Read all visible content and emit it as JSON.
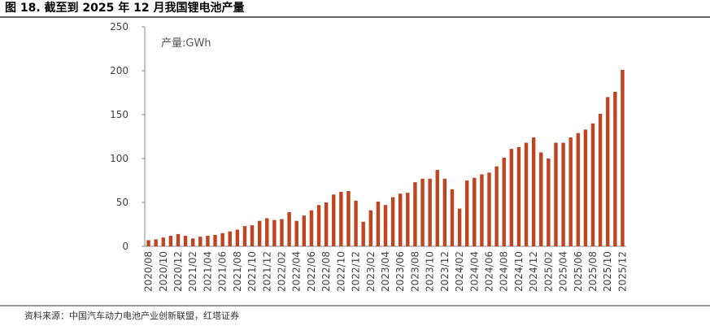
{
  "chart_data": {
    "type": "bar",
    "title": "图 18. 截至到 2025 年 12 月我国锂电池产量",
    "annotation": "产量:GWh",
    "source": "资料来源：中国汽车动力电池产业创新联盟，红塔证券",
    "categories": [
      "2020/08",
      null,
      "2020/10",
      null,
      "2020/12",
      null,
      "2021/02",
      null,
      "2021/04",
      null,
      "2021/06",
      null,
      "2021/08",
      null,
      "2021/10",
      null,
      "2021/12",
      null,
      "2022/02",
      null,
      "2022/04",
      null,
      "2022/06",
      null,
      "2022/08",
      null,
      "2022/10",
      null,
      "2022/12",
      null,
      "2023/02",
      null,
      "2023/04",
      null,
      "2023/06",
      null,
      "2023/08",
      null,
      "2023/10",
      null,
      "2023/12",
      null,
      "2024/02",
      null,
      "2024/04",
      null,
      "2024/06",
      null,
      "2024/08",
      null,
      "2024/10",
      null,
      "2024/12",
      null,
      "2025/02",
      null,
      "2025/04",
      null,
      "2025/06",
      null,
      "2025/08",
      null,
      "2025/10",
      null,
      "2025/12"
    ],
    "values": [
      7,
      8,
      10,
      12,
      14,
      12,
      9,
      11,
      12,
      13,
      15,
      17,
      19,
      23,
      24,
      29,
      32,
      30,
      31,
      39,
      29,
      35,
      41,
      47,
      50,
      59,
      62,
      63,
      52,
      28,
      41,
      51,
      47,
      56,
      60,
      61,
      73,
      77,
      77,
      87,
      77,
      65,
      43,
      75,
      78,
      82,
      84,
      91,
      101,
      111,
      113,
      118,
      124,
      107,
      100,
      118,
      118,
      124,
      129,
      133,
      140,
      151,
      170,
      176,
      201
    ],
    "color": "#c0441f",
    "ylim": [
      0,
      250
    ],
    "yticks": [
      0,
      50,
      100,
      150,
      200,
      250
    ]
  }
}
